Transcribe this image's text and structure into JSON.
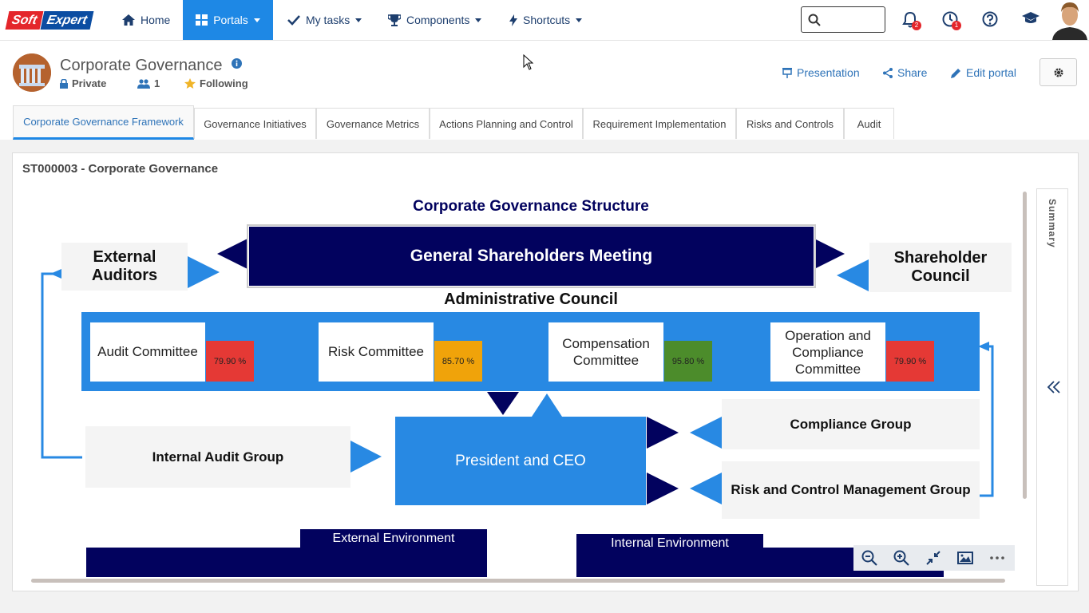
{
  "topbar": {
    "logo_left": "Soft",
    "logo_right": "Expert",
    "nav": [
      {
        "label": "Home"
      },
      {
        "label": "Portals"
      },
      {
        "label": "My tasks"
      },
      {
        "label": "Components"
      },
      {
        "label": "Shortcuts"
      }
    ],
    "search_placeholder": "",
    "notifications_count": "2",
    "alerts_count": "1"
  },
  "portal": {
    "title": "Corporate Governance",
    "privacy": "Private",
    "members": "1",
    "following": "Following",
    "actions": {
      "presentation": "Presentation",
      "share": "Share",
      "edit": "Edit portal"
    }
  },
  "tabs": [
    {
      "label": "Corporate Governance Framework"
    },
    {
      "label": "Governance Initiatives"
    },
    {
      "label": "Governance Metrics"
    },
    {
      "label": "Actions Planning and Control"
    },
    {
      "label": "Requirement Implementation"
    },
    {
      "label": "Risks and Controls"
    },
    {
      "label": "Audit"
    }
  ],
  "panel": {
    "title": "ST000003 - Corporate Governance",
    "summary_label": "Summary"
  },
  "diagram": {
    "title": "Corporate Governance Structure",
    "shareholders_meeting": "General Shareholders Meeting",
    "external_auditors_line1": "External",
    "external_auditors_line2": "Auditors",
    "shareholder_council_line1": "Shareholder",
    "shareholder_council_line2": "Council",
    "administrative_council": "Administrative Council",
    "committees": [
      {
        "name": "Audit Committee",
        "score": "79.90 %",
        "color": "#e53935"
      },
      {
        "name": "Risk Committee",
        "score": "85.70 %",
        "color": "#f0a30a"
      },
      {
        "name": "Compensation Committee",
        "score": "95.80 %",
        "color": "#4c8c2b"
      },
      {
        "name": "Operation and Compliance Committee",
        "score": "79.90 %",
        "color": "#e53935"
      }
    ],
    "internal_audit_group": "Internal Audit Group",
    "president": "President and CEO",
    "compliance_group": "Compliance Group",
    "risk_group": "Risk and Control Management Group",
    "external_env": "External Environment",
    "internal_env": "Internal Environment"
  },
  "colors": {
    "navy": "#02025e",
    "blue": "#2889e3",
    "accent": "#1e88e5"
  }
}
